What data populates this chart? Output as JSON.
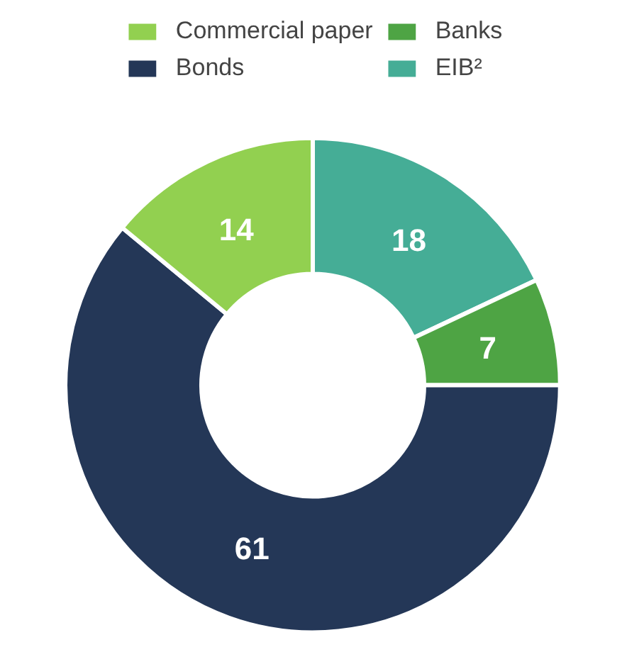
{
  "chart_data": {
    "type": "donut",
    "categories": [
      "EIB²",
      "Banks",
      "Bonds",
      "Commercial paper"
    ],
    "values": [
      18,
      7,
      61,
      14
    ],
    "colors": [
      "#45ad96",
      "#4ea444",
      "#243757",
      "#92d050"
    ],
    "data_labels": true,
    "legend": "top"
  }
}
